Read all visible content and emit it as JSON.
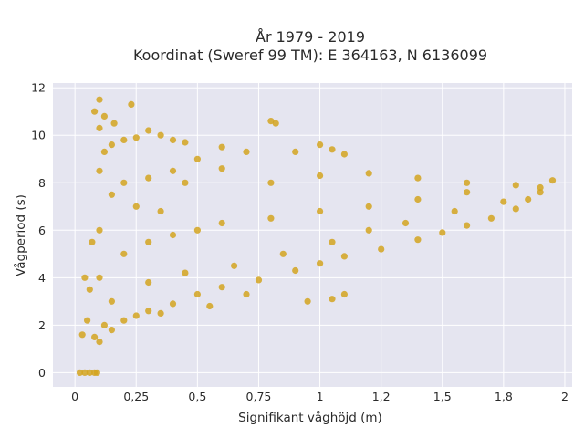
{
  "chart_data": {
    "type": "scatter",
    "title": "År 1979 - 2019",
    "subtitle": "Koordinat (Sweref 99 TM): E 364163, N 6136099",
    "xlabel": "Signifikant våghöjd (m)",
    "ylabel": "Vågperiod (s)",
    "xlim": [
      -0.09,
      2.03
    ],
    "ylim": [
      -0.6,
      12.2
    ],
    "x_ticks": [
      0,
      0.25,
      0.5,
      0.75,
      1,
      1.25,
      1.5,
      1.75,
      2
    ],
    "x_tick_labels": [
      "0",
      "0,25",
      "0,5",
      "0,75",
      "1",
      "1,2",
      "1,5",
      "1,8",
      "2"
    ],
    "y_ticks": [
      0,
      2,
      4,
      6,
      8,
      10,
      12
    ],
    "y_tick_labels": [
      "0",
      "2",
      "4",
      "6",
      "8",
      "10",
      "12"
    ],
    "grid": true,
    "colors": {
      "point": "#D4A520",
      "plot_bg": "#E5E5F0",
      "grid": "#ffffff"
    },
    "series": [
      {
        "points": [
          [
            0.02,
            0.0
          ],
          [
            0.04,
            0.0
          ],
          [
            0.06,
            0.0
          ],
          [
            0.08,
            0.0
          ],
          [
            0.09,
            0.0
          ],
          [
            0.03,
            1.6
          ],
          [
            0.05,
            2.2
          ],
          [
            0.08,
            1.5
          ],
          [
            0.1,
            1.3
          ],
          [
            0.12,
            2.0
          ],
          [
            0.15,
            1.8
          ],
          [
            0.2,
            2.2
          ],
          [
            0.25,
            2.4
          ],
          [
            0.3,
            2.6
          ],
          [
            0.4,
            2.9
          ],
          [
            0.5,
            3.3
          ],
          [
            0.6,
            3.6
          ],
          [
            0.75,
            3.9
          ],
          [
            0.9,
            4.3
          ],
          [
            1.0,
            4.6
          ],
          [
            1.1,
            4.9
          ],
          [
            1.25,
            5.2
          ],
          [
            1.4,
            5.6
          ],
          [
            1.5,
            5.9
          ],
          [
            1.6,
            6.2
          ],
          [
            1.7,
            6.5
          ],
          [
            1.8,
            6.9
          ],
          [
            1.85,
            7.3
          ],
          [
            1.9,
            7.6
          ],
          [
            1.95,
            8.1
          ],
          [
            0.1,
            4.0
          ],
          [
            0.2,
            5.0
          ],
          [
            0.3,
            5.5
          ],
          [
            0.4,
            5.8
          ],
          [
            0.5,
            6.0
          ],
          [
            0.6,
            6.3
          ],
          [
            0.8,
            6.5
          ],
          [
            1.0,
            6.8
          ],
          [
            1.2,
            7.0
          ],
          [
            1.4,
            7.3
          ],
          [
            1.6,
            7.6
          ],
          [
            1.8,
            7.9
          ],
          [
            0.1,
            6.0
          ],
          [
            0.15,
            7.5
          ],
          [
            0.2,
            8.0
          ],
          [
            0.25,
            7.0
          ],
          [
            0.3,
            8.2
          ],
          [
            0.4,
            8.5
          ],
          [
            0.5,
            9.0
          ],
          [
            0.6,
            8.6
          ],
          [
            0.8,
            8.0
          ],
          [
            1.0,
            8.3
          ],
          [
            1.2,
            8.4
          ],
          [
            1.4,
            8.2
          ],
          [
            1.6,
            8.0
          ],
          [
            0.1,
            8.5
          ],
          [
            0.12,
            9.3
          ],
          [
            0.15,
            9.6
          ],
          [
            0.2,
            9.8
          ],
          [
            0.25,
            9.9
          ],
          [
            0.1,
            10.3
          ],
          [
            0.12,
            10.8
          ],
          [
            0.08,
            11.0
          ],
          [
            0.1,
            11.5
          ],
          [
            0.16,
            10.5
          ],
          [
            0.23,
            11.3
          ],
          [
            0.3,
            10.2
          ],
          [
            0.35,
            10.0
          ],
          [
            0.4,
            9.8
          ],
          [
            0.45,
            9.7
          ],
          [
            0.6,
            9.5
          ],
          [
            0.8,
            10.6
          ],
          [
            0.82,
            10.5
          ],
          [
            1.0,
            9.6
          ],
          [
            1.05,
            9.4
          ],
          [
            0.9,
            9.3
          ],
          [
            1.1,
            9.2
          ],
          [
            0.7,
            9.3
          ],
          [
            0.45,
            8.0
          ],
          [
            0.35,
            6.8
          ],
          [
            0.15,
            3.0
          ],
          [
            0.3,
            3.8
          ],
          [
            0.45,
            4.2
          ],
          [
            0.65,
            4.5
          ],
          [
            0.85,
            5.0
          ],
          [
            1.05,
            5.5
          ],
          [
            1.2,
            6.0
          ],
          [
            1.35,
            6.3
          ],
          [
            1.55,
            6.8
          ],
          [
            1.75,
            7.2
          ],
          [
            1.9,
            7.8
          ],
          [
            0.7,
            3.3
          ],
          [
            0.95,
            3.0
          ],
          [
            1.05,
            3.1
          ],
          [
            1.1,
            3.3
          ],
          [
            0.55,
            2.8
          ],
          [
            0.35,
            2.5
          ],
          [
            0.06,
            3.5
          ],
          [
            0.04,
            4.0
          ],
          [
            0.07,
            5.5
          ]
        ]
      }
    ]
  }
}
